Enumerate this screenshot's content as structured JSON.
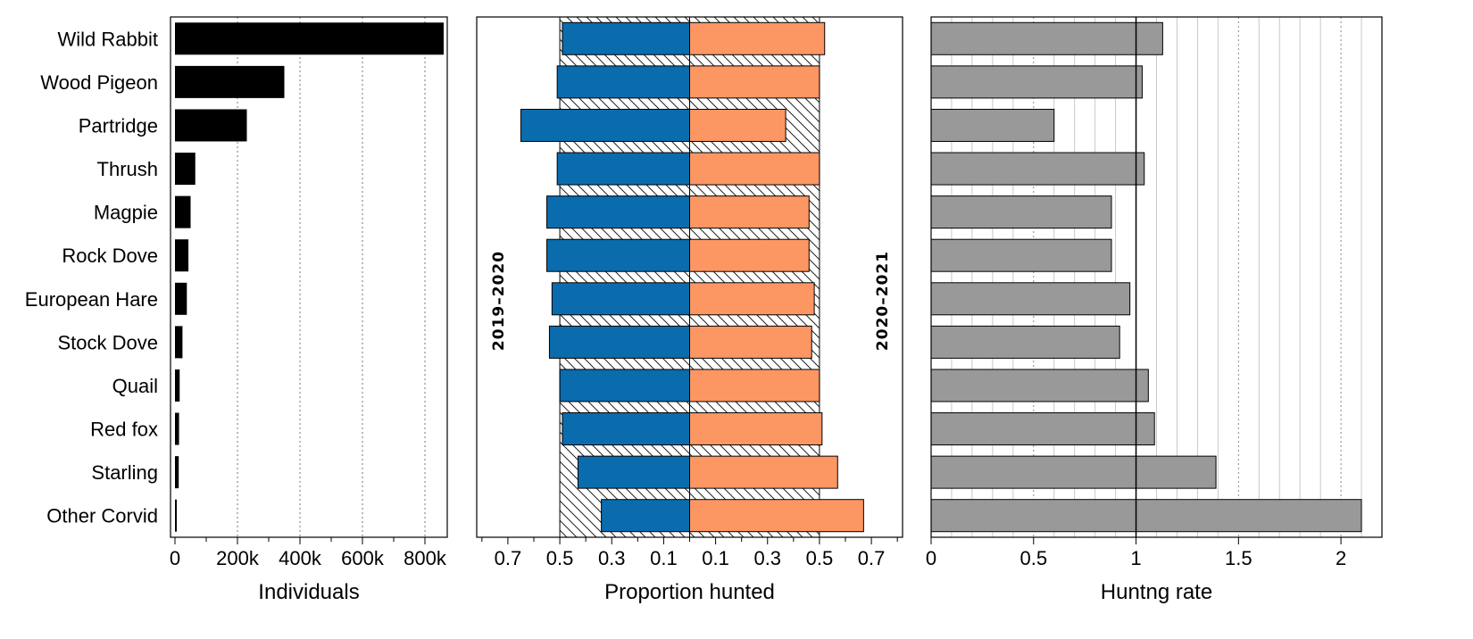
{
  "categories": [
    "Wild Rabbit",
    "Wood Pigeon",
    "Partridge",
    "Thrush",
    "Magpie",
    "Rock Dove",
    "European Hare",
    "Stock Dove",
    "Quail",
    "Red fox",
    "Starling",
    "Other Corvid"
  ],
  "colors": {
    "individuals_bar": "#000000",
    "period1": "#0a6cad",
    "period2": "#fc9663",
    "rate_bar": "#999999"
  },
  "chart_data": [
    {
      "type": "bar",
      "orientation": "horizontal",
      "xlabel": "Individuals",
      "xlim": [
        0,
        860000
      ],
      "xticks": [
        0,
        200000,
        400000,
        600000,
        800000
      ],
      "xtick_labels": [
        "0",
        "200k",
        "400k",
        "600k",
        "800k"
      ],
      "grid": "vertical dotted",
      "series": [
        {
          "values": [
            860000,
            350000,
            230000,
            65000,
            50000,
            43000,
            38000,
            24000,
            15000,
            13000,
            12000,
            5000
          ]
        }
      ]
    },
    {
      "type": "bar",
      "orientation": "horizontal diverging",
      "xlabel": "Proportion hunted",
      "xlim": [
        -0.82,
        0.82
      ],
      "xticks": [
        -0.7,
        -0.5,
        -0.3,
        -0.1,
        0.1,
        0.3,
        0.5,
        0.7
      ],
      "xtick_labels": [
        "0.7",
        "0.5",
        "0.3",
        "0.1",
        "0.1",
        "0.3",
        "0.5",
        "0.7"
      ],
      "hatched_band": [
        -0.5,
        0.5
      ],
      "series": [
        {
          "name": "2019–2020",
          "values": [
            0.49,
            0.51,
            0.65,
            0.51,
            0.55,
            0.55,
            0.53,
            0.54,
            0.5,
            0.49,
            0.43,
            0.34
          ]
        },
        {
          "name": "2020–2021",
          "values": [
            0.52,
            0.5,
            0.37,
            0.5,
            0.46,
            0.46,
            0.48,
            0.47,
            0.5,
            0.51,
            0.57,
            0.67
          ]
        }
      ]
    },
    {
      "type": "bar",
      "orientation": "horizontal",
      "xlabel": "Huntng rate",
      "xlim": [
        0,
        2.2
      ],
      "xticks": [
        0,
        0.5,
        1,
        1.5,
        2
      ],
      "xtick_labels": [
        "0",
        "0.5",
        "1",
        "1.5",
        "2"
      ],
      "reference_line": 1,
      "grid": "vertical minor",
      "series": [
        {
          "values": [
            1.13,
            1.03,
            0.6,
            1.04,
            0.88,
            0.88,
            0.97,
            0.92,
            1.06,
            1.09,
            1.39,
            2.1
          ]
        }
      ]
    }
  ]
}
